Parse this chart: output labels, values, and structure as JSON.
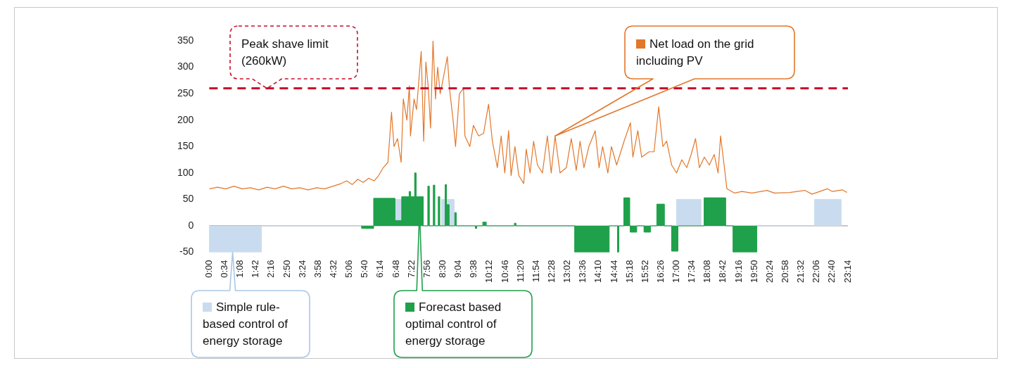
{
  "chart_data": {
    "type": "line",
    "legend": "bottom",
    "xlim": [
      0,
      23.2333
    ],
    "ylim": [
      -50,
      350
    ],
    "yticks": [
      -50,
      0,
      50,
      100,
      150,
      200,
      250,
      300,
      350
    ],
    "xticks": [
      {
        "value": 0,
        "label": "0:00"
      },
      {
        "value": 0.5667,
        "label": "0:34"
      },
      {
        "value": 1.1333,
        "label": "1:08"
      },
      {
        "value": 1.7,
        "label": "1:42"
      },
      {
        "value": 2.2667,
        "label": "2:16"
      },
      {
        "value": 2.8333,
        "label": "2:50"
      },
      {
        "value": 3.4,
        "label": "3:24"
      },
      {
        "value": 3.9667,
        "label": "3:58"
      },
      {
        "value": 4.5333,
        "label": "4:32"
      },
      {
        "value": 5.1,
        "label": "5:06"
      },
      {
        "value": 5.6667,
        "label": "5:40"
      },
      {
        "value": 6.2333,
        "label": "6:14"
      },
      {
        "value": 6.8,
        "label": "6:48"
      },
      {
        "value": 7.3667,
        "label": "7:22"
      },
      {
        "value": 7.9333,
        "label": "7:56"
      },
      {
        "value": 8.5,
        "label": "8:30"
      },
      {
        "value": 9.0667,
        "label": "9:04"
      },
      {
        "value": 9.6333,
        "label": "9:38"
      },
      {
        "value": 10.2,
        "label": "10:12"
      },
      {
        "value": 10.7667,
        "label": "10:46"
      },
      {
        "value": 11.3333,
        "label": "11:20"
      },
      {
        "value": 11.9,
        "label": "11:54"
      },
      {
        "value": 12.4667,
        "label": "12:28"
      },
      {
        "value": 13.0333,
        "label": "13:02"
      },
      {
        "value": 13.6,
        "label": "13:36"
      },
      {
        "value": 14.1667,
        "label": "14:10"
      },
      {
        "value": 14.7333,
        "label": "14:44"
      },
      {
        "value": 15.3,
        "label": "15:18"
      },
      {
        "value": 15.8667,
        "label": "15:52"
      },
      {
        "value": 16.4333,
        "label": "16:26"
      },
      {
        "value": 17.0,
        "label": "17:00"
      },
      {
        "value": 17.5667,
        "label": "17:34"
      },
      {
        "value": 18.1333,
        "label": "18:08"
      },
      {
        "value": 18.7,
        "label": "18:42"
      },
      {
        "value": 19.2667,
        "label": "19:16"
      },
      {
        "value": 19.8333,
        "label": "19:50"
      },
      {
        "value": 20.4,
        "label": "20:24"
      },
      {
        "value": 20.9667,
        "label": "20:58"
      },
      {
        "value": 21.5333,
        "label": "21:32"
      },
      {
        "value": 22.1,
        "label": "22:06"
      },
      {
        "value": 22.6667,
        "label": "22:40"
      },
      {
        "value": 23.2333,
        "label": "23:14"
      }
    ],
    "ref_lines": [
      {
        "axis": "y",
        "value": 260,
        "label": "Peak shave limit (260kW)",
        "color": "#c8102e",
        "line_style": "dashed"
      }
    ],
    "series": [
      {
        "name": "Net load on the grid including PV",
        "color": "#e2772a",
        "x": [
          0,
          0.3,
          0.6,
          0.9,
          1.2,
          1.5,
          1.8,
          2.1,
          2.4,
          2.7,
          3.0,
          3.3,
          3.6,
          3.9,
          4.2,
          4.5,
          4.8,
          5.0,
          5.2,
          5.4,
          5.6,
          5.8,
          6.0,
          6.16,
          6.33,
          6.5,
          6.63,
          6.72,
          6.85,
          6.98,
          7.06,
          7.19,
          7.28,
          7.32,
          7.45,
          7.54,
          7.71,
          7.8,
          7.88,
          7.97,
          8.05,
          8.14,
          8.23,
          8.31,
          8.4,
          8.48,
          8.66,
          8.74,
          8.87,
          8.96,
          9.1,
          9.25,
          9.3,
          9.48,
          9.61,
          9.8,
          9.98,
          10.16,
          10.3,
          10.48,
          10.62,
          10.75,
          10.89,
          10.98,
          11.12,
          11.26,
          11.44,
          11.53,
          11.67,
          11.8,
          11.94,
          12.12,
          12.3,
          12.44,
          12.58,
          12.76,
          12.99,
          13.17,
          13.35,
          13.49,
          13.63,
          13.81,
          14.04,
          14.18,
          14.31,
          14.5,
          14.63,
          14.82,
          15.09,
          15.32,
          15.41,
          15.59,
          15.73,
          16.0,
          16.18,
          16.35,
          16.5,
          16.64,
          16.82,
          17.0,
          17.19,
          17.37,
          17.53,
          17.69,
          17.83,
          18.01,
          18.19,
          18.37,
          18.51,
          18.6,
          18.74,
          18.83,
          19.1,
          19.38,
          19.74,
          20.29,
          20.56,
          21.11,
          21.66,
          21.93,
          22.48,
          22.66,
          23.03,
          23.2
        ],
        "values": [
          70,
          73,
          70,
          75,
          70,
          72,
          68,
          73,
          70,
          75,
          70,
          72,
          68,
          72,
          70,
          75,
          80,
          85,
          78,
          88,
          82,
          90,
          85,
          95,
          110,
          120,
          215,
          150,
          165,
          120,
          240,
          200,
          265,
          170,
          240,
          220,
          330,
          160,
          310,
          260,
          185,
          350,
          240,
          300,
          250,
          270,
          320,
          260,
          200,
          150,
          250,
          260,
          170,
          150,
          190,
          170,
          175,
          230,
          160,
          110,
          170,
          100,
          180,
          95,
          150,
          95,
          80,
          145,
          100,
          160,
          115,
          100,
          170,
          100,
          170,
          100,
          110,
          165,
          105,
          160,
          110,
          150,
          180,
          110,
          150,
          100,
          150,
          115,
          160,
          195,
          130,
          180,
          130,
          140,
          140,
          225,
          150,
          160,
          115,
          100,
          125,
          110,
          135,
          165,
          110,
          130,
          115,
          135,
          100,
          170,
          110,
          70,
          62,
          65,
          62,
          67,
          62,
          63,
          67,
          60,
          70,
          65,
          68,
          63
        ]
      },
      {
        "name": "Forecast based optimal control of energy storage",
        "type": "area",
        "color": "#1fa04a",
        "x": [
          5.55,
          5.55,
          5.98,
          5.98,
          6.75,
          6.75,
          7.0,
          7.0,
          7.27,
          7.27,
          7.32,
          7.32,
          7.47,
          7.47,
          7.52,
          7.52,
          7.78,
          7.78,
          7.95,
          7.95,
          8.0,
          8.0,
          8.15,
          8.15,
          8.2,
          8.2,
          8.33,
          8.33,
          8.38,
          8.38,
          8.58,
          8.58,
          8.63,
          8.63,
          8.72,
          8.72,
          8.93,
          8.93,
          8.98,
          8.98,
          9.68,
          9.68,
          9.73,
          9.73,
          9.95,
          9.95,
          10.07,
          10.07,
          11.1,
          11.1,
          11.15,
          11.15,
          13.3,
          13.3,
          14.55,
          14.55,
          14.85,
          14.85,
          14.9,
          14.9,
          15.08,
          15.08,
          15.29,
          15.29,
          15.32,
          15.32,
          15.55,
          15.55,
          15.82,
          15.82,
          16.05,
          16.05,
          16.28,
          16.28,
          16.55,
          16.55,
          16.82,
          16.82,
          17.05,
          17.05,
          18.0,
          18.0,
          18.78,
          18.78,
          19.06,
          19.06,
          19.92,
          19.92
        ],
        "values": [
          0,
          -5,
          -5,
          52,
          52,
          10,
          10,
          55,
          55,
          65,
          65,
          55,
          55,
          100,
          100,
          55,
          55,
          0,
          0,
          75,
          75,
          0,
          0,
          77,
          77,
          0,
          0,
          55,
          55,
          0,
          0,
          78,
          78,
          40,
          40,
          0,
          0,
          25,
          25,
          0,
          0,
          -5,
          -5,
          0,
          0,
          7,
          7,
          0,
          0,
          5,
          5,
          0,
          0,
          -50,
          -50,
          0,
          0,
          -50,
          -50,
          0,
          0,
          53,
          53,
          0,
          0,
          -12,
          -12,
          0,
          0,
          -12,
          -12,
          0,
          0,
          41,
          41,
          0,
          0,
          -48,
          -48,
          0,
          0,
          53,
          53,
          0,
          0,
          -50,
          -50,
          0
        ]
      },
      {
        "name": "Simple rule-based control of energy storage",
        "type": "area",
        "color": "#c9dcef",
        "x": [
          0,
          0,
          1.9,
          1.9,
          6.75,
          6.75,
          7.0,
          7.0,
          8.45,
          8.45,
          8.9,
          8.9,
          17.0,
          17.0,
          17.88,
          17.88,
          22.02,
          22.02,
          22.98,
          22.98
        ],
        "values": [
          0,
          -50,
          -50,
          0,
          0,
          50,
          50,
          0,
          0,
          50,
          50,
          0,
          0,
          50,
          50,
          0,
          0,
          50,
          50,
          0
        ]
      }
    ]
  }
}
